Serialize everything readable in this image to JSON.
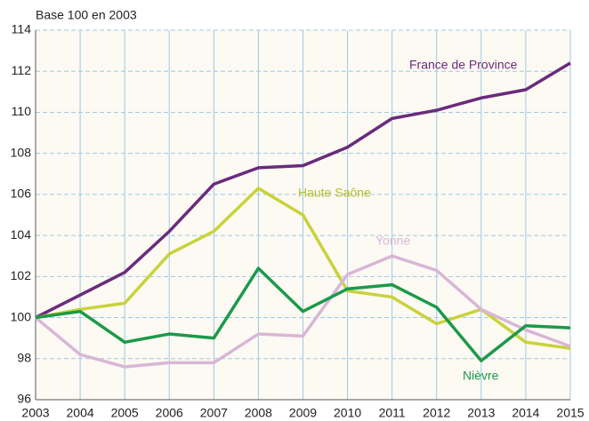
{
  "chart_data": {
    "type": "line",
    "y_label": "Base 100 en 2003",
    "x": [
      2003,
      2004,
      2005,
      2006,
      2007,
      2008,
      2009,
      2010,
      2011,
      2012,
      2013,
      2014,
      2015
    ],
    "series": [
      {
        "name": "France de  Province",
        "color": "#6a2b7d",
        "values": [
          100,
          101.1,
          102.2,
          104.2,
          106.5,
          107.3,
          107.4,
          108.3,
          109.7,
          110.1,
          110.7,
          111.1,
          112.4
        ]
      },
      {
        "name": "Haute Saône",
        "color": "#c9d23b",
        "values": [
          100,
          100.4,
          100.7,
          103.1,
          104.2,
          106.3,
          105.0,
          101.3,
          101.0,
          99.7,
          100.4,
          98.8,
          98.5
        ]
      },
      {
        "name": "Yonne",
        "color": "#d9b6d6",
        "values": [
          100,
          98.2,
          97.6,
          97.8,
          97.8,
          99.2,
          99.1,
          102.1,
          103.0,
          102.3,
          100.4,
          99.4,
          98.6
        ]
      },
      {
        "name": "Nièvre",
        "color": "#1c994a",
        "values": [
          100,
          100.3,
          98.8,
          99.2,
          99.0,
          102.4,
          100.3,
          101.4,
          101.6,
          100.5,
          97.9,
          99.6,
          99.5
        ]
      }
    ],
    "xlim": [
      2003,
      2015
    ],
    "xticks": [
      2003,
      2004,
      2005,
      2006,
      2007,
      2008,
      2009,
      2010,
      2011,
      2012,
      2013,
      2014,
      2015
    ],
    "ylim": [
      96,
      114
    ],
    "yticks": [
      96,
      98,
      100,
      102,
      104,
      106,
      108,
      110,
      112,
      114
    ],
    "grid": true
  }
}
